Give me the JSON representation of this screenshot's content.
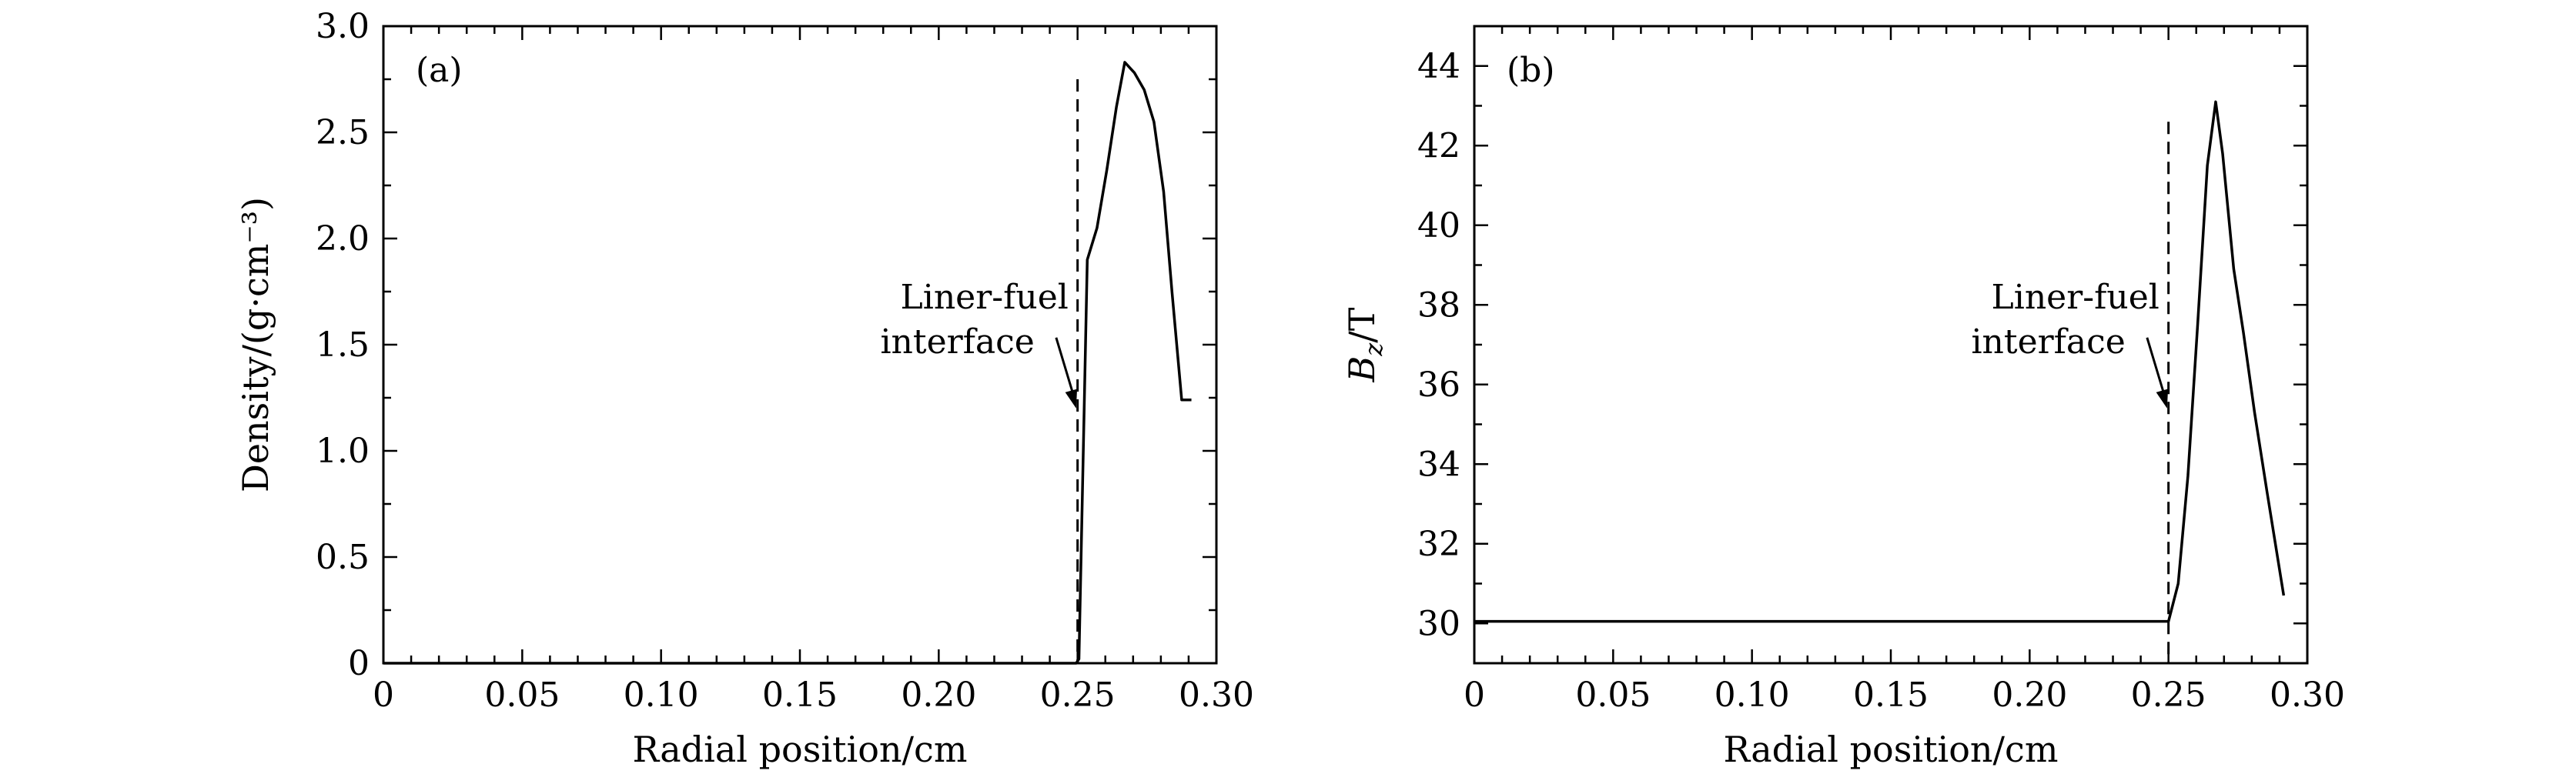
{
  "chart_data": [
    {
      "type": "line",
      "panel_label": "(a)",
      "xlabel": "Radial position/cm",
      "ylabel": "Density/(g·cm⁻³)",
      "xlim": [
        0,
        0.3
      ],
      "ylim": [
        0,
        3.0
      ],
      "x_ticks": [
        0,
        0.05,
        0.1,
        0.15,
        0.2,
        0.25,
        0.3
      ],
      "x_tick_labels": [
        "0",
        "0.05",
        "0.10",
        "0.15",
        "0.20",
        "0.25",
        "0.30"
      ],
      "y_ticks": [
        0,
        0.5,
        1.0,
        1.5,
        2.0,
        2.5,
        3.0
      ],
      "y_tick_labels": [
        "0",
        "0.5",
        "1.0",
        "1.5",
        "2.0",
        "2.5",
        "3.0"
      ],
      "grid": false,
      "series": [
        {
          "x": [
            0,
            0.249,
            0.2495,
            0.2505,
            0.2535,
            0.257,
            0.2605,
            0.264,
            0.267,
            0.2705,
            0.274,
            0.2775,
            0.281,
            0.284,
            0.2875,
            0.291
          ],
          "y": [
            0,
            0,
            0,
            0.02,
            1.9,
            2.05,
            2.32,
            2.62,
            2.83,
            2.78,
            2.7,
            2.55,
            2.22,
            1.75,
            1.24,
            1.24
          ]
        }
      ],
      "interface_x": 0.25,
      "interface_top": 2.75,
      "annotation": {
        "lines": [
          "Liner-fuel",
          "interface"
        ],
        "points_to": [
          0.2495,
          1.2
        ]
      }
    },
    {
      "type": "line",
      "panel_label": "(b)",
      "xlabel": "Radial position/cm",
      "ylabel": "B_z/T",
      "ylabel_parts": {
        "symbol": "B",
        "subscript": "z",
        "unit": "/T"
      },
      "xlim": [
        0,
        0.3
      ],
      "ylim": [
        29,
        45
      ],
      "x_ticks": [
        0,
        0.05,
        0.1,
        0.15,
        0.2,
        0.25,
        0.3
      ],
      "x_tick_labels": [
        "0",
        "0.05",
        "0.10",
        "0.15",
        "0.20",
        "0.25",
        "0.30"
      ],
      "y_ticks": [
        30,
        32,
        34,
        36,
        38,
        40,
        42,
        44
      ],
      "y_tick_labels": [
        "30",
        "32",
        "34",
        "36",
        "38",
        "40",
        "42",
        "44"
      ],
      "grid": false,
      "series": [
        {
          "x": [
            0,
            0.249,
            0.25,
            0.2535,
            0.257,
            0.2605,
            0.264,
            0.267,
            0.2695,
            0.2735,
            0.277,
            0.281,
            0.2855,
            0.2915
          ],
          "y": [
            30.05,
            30.05,
            30.05,
            31.0,
            33.7,
            37.5,
            41.5,
            43.1,
            41.8,
            38.9,
            37.3,
            35.3,
            33.3,
            30.7
          ]
        }
      ],
      "interface_x": 0.25,
      "interface_top": 42.6,
      "annotation": {
        "lines": [
          "Liner-fuel",
          "interface"
        ],
        "points_to": [
          0.2495,
          35.4
        ]
      }
    }
  ]
}
